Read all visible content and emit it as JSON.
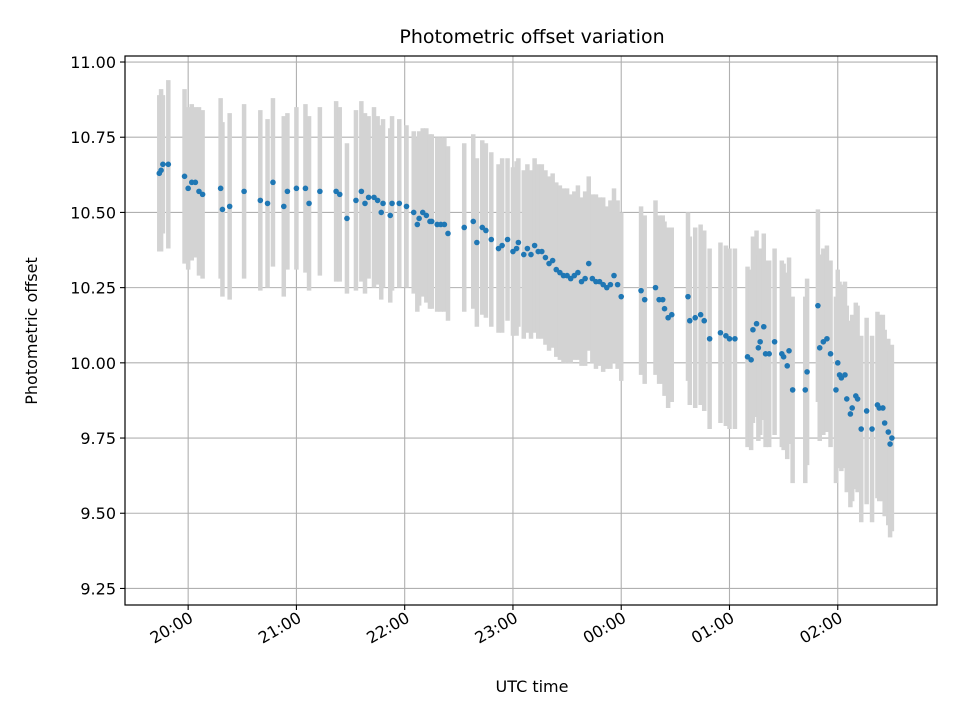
{
  "chart_data": {
    "type": "scatter",
    "title": "Photometric offset variation",
    "xlabel": "UTC time",
    "ylabel": "Photometric offset",
    "x_unit": "UTC time (evening to next morning)",
    "xlim": [
      "19:25",
      "02:55"
    ],
    "ylim": [
      9.195,
      11.02
    ],
    "grid": true,
    "yticks": [
      "9.25",
      "9.50",
      "9.75",
      "10.00",
      "10.25",
      "10.50",
      "10.75",
      "11.00"
    ],
    "xticks": [
      "20:00",
      "21:00",
      "22:00",
      "23:00",
      "00:00",
      "01:00",
      "02:00"
    ],
    "colors": {
      "points": "#1f77b4",
      "errorbars": "#d3d3d3",
      "grid": "#b0b0b0"
    },
    "series": [
      {
        "points": [
          {
            "t": "19:44",
            "y": 10.63,
            "err": 0.26
          },
          {
            "t": "19:45",
            "y": 10.64,
            "err": 0.27
          },
          {
            "t": "19:46",
            "y": 10.66,
            "err": 0.23
          },
          {
            "t": "19:49",
            "y": 10.66,
            "err": 0.28
          },
          {
            "t": "19:58",
            "y": 10.62,
            "err": 0.29
          },
          {
            "t": "20:00",
            "y": 10.58,
            "err": 0.27
          },
          {
            "t": "20:02",
            "y": 10.6,
            "err": 0.26
          },
          {
            "t": "20:04",
            "y": 10.6,
            "err": 0.25
          },
          {
            "t": "20:06",
            "y": 10.57,
            "err": 0.28
          },
          {
            "t": "20:08",
            "y": 10.56,
            "err": 0.28
          },
          {
            "t": "20:18",
            "y": 10.58,
            "err": 0.3
          },
          {
            "t": "20:19",
            "y": 10.51,
            "err": 0.29
          },
          {
            "t": "20:23",
            "y": 10.52,
            "err": 0.31
          },
          {
            "t": "20:31",
            "y": 10.57,
            "err": 0.29
          },
          {
            "t": "20:40",
            "y": 10.54,
            "err": 0.3
          },
          {
            "t": "20:44",
            "y": 10.53,
            "err": 0.28
          },
          {
            "t": "20:47",
            "y": 10.6,
            "err": 0.28
          },
          {
            "t": "20:53",
            "y": 10.52,
            "err": 0.3
          },
          {
            "t": "20:55",
            "y": 10.57,
            "err": 0.26
          },
          {
            "t": "21:00",
            "y": 10.58,
            "err": 0.27
          },
          {
            "t": "21:05",
            "y": 10.58,
            "err": 0.28
          },
          {
            "t": "21:07",
            "y": 10.53,
            "err": 0.29
          },
          {
            "t": "21:13",
            "y": 10.57,
            "err": 0.28
          },
          {
            "t": "21:22",
            "y": 10.57,
            "err": 0.3
          },
          {
            "t": "21:24",
            "y": 10.56,
            "err": 0.29
          },
          {
            "t": "21:28",
            "y": 10.48,
            "err": 0.25
          },
          {
            "t": "21:33",
            "y": 10.54,
            "err": 0.3
          },
          {
            "t": "21:36",
            "y": 10.57,
            "err": 0.3
          },
          {
            "t": "21:38",
            "y": 10.53,
            "err": 0.3
          },
          {
            "t": "21:40",
            "y": 10.55,
            "err": 0.27
          },
          {
            "t": "21:43",
            "y": 10.55,
            "err": 0.3
          },
          {
            "t": "21:45",
            "y": 10.54,
            "err": 0.28
          },
          {
            "t": "21:47",
            "y": 10.5,
            "err": 0.29
          },
          {
            "t": "21:48",
            "y": 10.53,
            "err": 0.28
          },
          {
            "t": "21:52",
            "y": 10.49,
            "err": 0.29
          },
          {
            "t": "21:53",
            "y": 10.53,
            "err": 0.29
          },
          {
            "t": "21:57",
            "y": 10.53,
            "err": 0.28
          },
          {
            "t": "22:01",
            "y": 10.52,
            "err": 0.27
          },
          {
            "t": "22:05",
            "y": 10.5,
            "err": 0.27
          },
          {
            "t": "22:07",
            "y": 10.46,
            "err": 0.29
          },
          {
            "t": "22:08",
            "y": 10.48,
            "err": 0.29
          },
          {
            "t": "22:10",
            "y": 10.5,
            "err": 0.28
          },
          {
            "t": "22:12",
            "y": 10.49,
            "err": 0.29
          },
          {
            "t": "22:14",
            "y": 10.47,
            "err": 0.29
          },
          {
            "t": "22:15",
            "y": 10.47,
            "err": 0.29
          },
          {
            "t": "22:18",
            "y": 10.46,
            "err": 0.29
          },
          {
            "t": "22:20",
            "y": 10.46,
            "err": 0.29
          },
          {
            "t": "22:22",
            "y": 10.46,
            "err": 0.29
          },
          {
            "t": "22:24",
            "y": 10.43,
            "err": 0.29
          },
          {
            "t": "22:33",
            "y": 10.45,
            "err": 0.28
          },
          {
            "t": "22:38",
            "y": 10.47,
            "err": 0.29
          },
          {
            "t": "22:40",
            "y": 10.4,
            "err": 0.28
          },
          {
            "t": "22:43",
            "y": 10.45,
            "err": 0.29
          },
          {
            "t": "22:45",
            "y": 10.44,
            "err": 0.29
          },
          {
            "t": "22:48",
            "y": 10.41,
            "err": 0.29
          },
          {
            "t": "22:52",
            "y": 10.38,
            "err": 0.28
          },
          {
            "t": "22:54",
            "y": 10.39,
            "err": 0.29
          },
          {
            "t": "22:57",
            "y": 10.41,
            "err": 0.27
          },
          {
            "t": "23:00",
            "y": 10.37,
            "err": 0.28
          },
          {
            "t": "23:02",
            "y": 10.38,
            "err": 0.29
          },
          {
            "t": "23:03",
            "y": 10.4,
            "err": 0.28
          },
          {
            "t": "23:06",
            "y": 10.36,
            "err": 0.28
          },
          {
            "t": "23:08",
            "y": 10.38,
            "err": 0.28
          },
          {
            "t": "23:10",
            "y": 10.36,
            "err": 0.28
          },
          {
            "t": "23:12",
            "y": 10.39,
            "err": 0.29
          },
          {
            "t": "23:14",
            "y": 10.37,
            "err": 0.29
          },
          {
            "t": "23:16",
            "y": 10.37,
            "err": 0.29
          },
          {
            "t": "23:18",
            "y": 10.35,
            "err": 0.29
          },
          {
            "t": "23:20",
            "y": 10.33,
            "err": 0.29
          },
          {
            "t": "23:22",
            "y": 10.34,
            "err": 0.29
          },
          {
            "t": "23:24",
            "y": 10.31,
            "err": 0.29
          },
          {
            "t": "23:26",
            "y": 10.3,
            "err": 0.29
          },
          {
            "t": "23:28",
            "y": 10.29,
            "err": 0.29
          },
          {
            "t": "23:30",
            "y": 10.29,
            "err": 0.29
          },
          {
            "t": "23:32",
            "y": 10.28,
            "err": 0.28
          },
          {
            "t": "23:34",
            "y": 10.29,
            "err": 0.28
          },
          {
            "t": "23:36",
            "y": 10.3,
            "err": 0.29
          },
          {
            "t": "23:38",
            "y": 10.27,
            "err": 0.28
          },
          {
            "t": "23:40",
            "y": 10.28,
            "err": 0.29
          },
          {
            "t": "23:42",
            "y": 10.33,
            "err": 0.29
          },
          {
            "t": "23:44",
            "y": 10.28,
            "err": 0.28
          },
          {
            "t": "23:46",
            "y": 10.27,
            "err": 0.29
          },
          {
            "t": "23:48",
            "y": 10.27,
            "err": 0.28
          },
          {
            "t": "23:50",
            "y": 10.26,
            "err": 0.29
          },
          {
            "t": "23:52",
            "y": 10.25,
            "err": 0.27
          },
          {
            "t": "23:54",
            "y": 10.26,
            "err": 0.28
          },
          {
            "t": "23:56",
            "y": 10.29,
            "err": 0.29
          },
          {
            "t": "23:58",
            "y": 10.26,
            "err": 0.28
          },
          {
            "t": "00:00",
            "y": 10.22,
            "err": 0.28
          },
          {
            "t": "00:11",
            "y": 10.24,
            "err": 0.28
          },
          {
            "t": "00:13",
            "y": 10.21,
            "err": 0.28
          },
          {
            "t": "00:19",
            "y": 10.25,
            "err": 0.29
          },
          {
            "t": "00:21",
            "y": 10.21,
            "err": 0.28
          },
          {
            "t": "00:23",
            "y": 10.21,
            "err": 0.28
          },
          {
            "t": "00:24",
            "y": 10.18,
            "err": 0.29
          },
          {
            "t": "00:26",
            "y": 10.15,
            "err": 0.3
          },
          {
            "t": "00:28",
            "y": 10.16,
            "err": 0.29
          },
          {
            "t": "00:37",
            "y": 10.22,
            "err": 0.28
          },
          {
            "t": "00:38",
            "y": 10.14,
            "err": 0.28
          },
          {
            "t": "00:41",
            "y": 10.15,
            "err": 0.3
          },
          {
            "t": "00:44",
            "y": 10.16,
            "err": 0.3
          },
          {
            "t": "00:46",
            "y": 10.14,
            "err": 0.3
          },
          {
            "t": "00:49",
            "y": 10.08,
            "err": 0.3
          },
          {
            "t": "00:55",
            "y": 10.1,
            "err": 0.3
          },
          {
            "t": "00:58",
            "y": 10.09,
            "err": 0.3
          },
          {
            "t": "01:00",
            "y": 10.08,
            "err": 0.3
          },
          {
            "t": "01:03",
            "y": 10.08,
            "err": 0.3
          },
          {
            "t": "01:10",
            "y": 10.02,
            "err": 0.3
          },
          {
            "t": "01:12",
            "y": 10.01,
            "err": 0.3
          },
          {
            "t": "01:13",
            "y": 10.11,
            "err": 0.31
          },
          {
            "t": "01:15",
            "y": 10.13,
            "err": 0.31
          },
          {
            "t": "01:16",
            "y": 10.05,
            "err": 0.31
          },
          {
            "t": "01:17",
            "y": 10.07,
            "err": 0.31
          },
          {
            "t": "01:19",
            "y": 10.12,
            "err": 0.31
          },
          {
            "t": "01:20",
            "y": 10.03,
            "err": 0.31
          },
          {
            "t": "01:22",
            "y": 10.03,
            "err": 0.31
          },
          {
            "t": "01:25",
            "y": 10.07,
            "err": 0.31
          },
          {
            "t": "01:29",
            "y": 10.03,
            "err": 0.31
          },
          {
            "t": "01:30",
            "y": 10.02,
            "err": 0.31
          },
          {
            "t": "01:32",
            "y": 9.99,
            "err": 0.31
          },
          {
            "t": "01:33",
            "y": 10.04,
            "err": 0.31
          },
          {
            "t": "01:35",
            "y": 9.91,
            "err": 0.31
          },
          {
            "t": "01:42",
            "y": 9.91,
            "err": 0.31
          },
          {
            "t": "01:43",
            "y": 9.97,
            "err": 0.31
          },
          {
            "t": "01:49",
            "y": 10.19,
            "err": 0.32
          },
          {
            "t": "01:50",
            "y": 10.05,
            "err": 0.31
          },
          {
            "t": "01:52",
            "y": 10.07,
            "err": 0.31
          },
          {
            "t": "01:54",
            "y": 10.08,
            "err": 0.31
          },
          {
            "t": "01:56",
            "y": 10.03,
            "err": 0.31
          },
          {
            "t": "01:59",
            "y": 9.91,
            "err": 0.31
          },
          {
            "t": "02:00",
            "y": 10.0,
            "err": 0.31
          },
          {
            "t": "02:01",
            "y": 9.96,
            "err": 0.31
          },
          {
            "t": "02:02",
            "y": 9.95,
            "err": 0.31
          },
          {
            "t": "02:04",
            "y": 9.96,
            "err": 0.31
          },
          {
            "t": "02:05",
            "y": 9.88,
            "err": 0.31
          },
          {
            "t": "02:07",
            "y": 9.83,
            "err": 0.31
          },
          {
            "t": "02:08",
            "y": 9.85,
            "err": 0.31
          },
          {
            "t": "02:10",
            "y": 9.89,
            "err": 0.31
          },
          {
            "t": "02:11",
            "y": 9.88,
            "err": 0.31
          },
          {
            "t": "02:13",
            "y": 9.78,
            "err": 0.31
          },
          {
            "t": "02:16",
            "y": 9.84,
            "err": 0.31
          },
          {
            "t": "02:19",
            "y": 9.78,
            "err": 0.31
          },
          {
            "t": "02:22",
            "y": 9.86,
            "err": 0.31
          },
          {
            "t": "02:23",
            "y": 9.85,
            "err": 0.31
          },
          {
            "t": "02:25",
            "y": 9.85,
            "err": 0.31
          },
          {
            "t": "02:26",
            "y": 9.8,
            "err": 0.31
          },
          {
            "t": "02:28",
            "y": 9.77,
            "err": 0.31
          },
          {
            "t": "02:29",
            "y": 9.73,
            "err": 0.31
          },
          {
            "t": "02:30",
            "y": 9.75,
            "err": 0.31
          }
        ]
      }
    ]
  }
}
